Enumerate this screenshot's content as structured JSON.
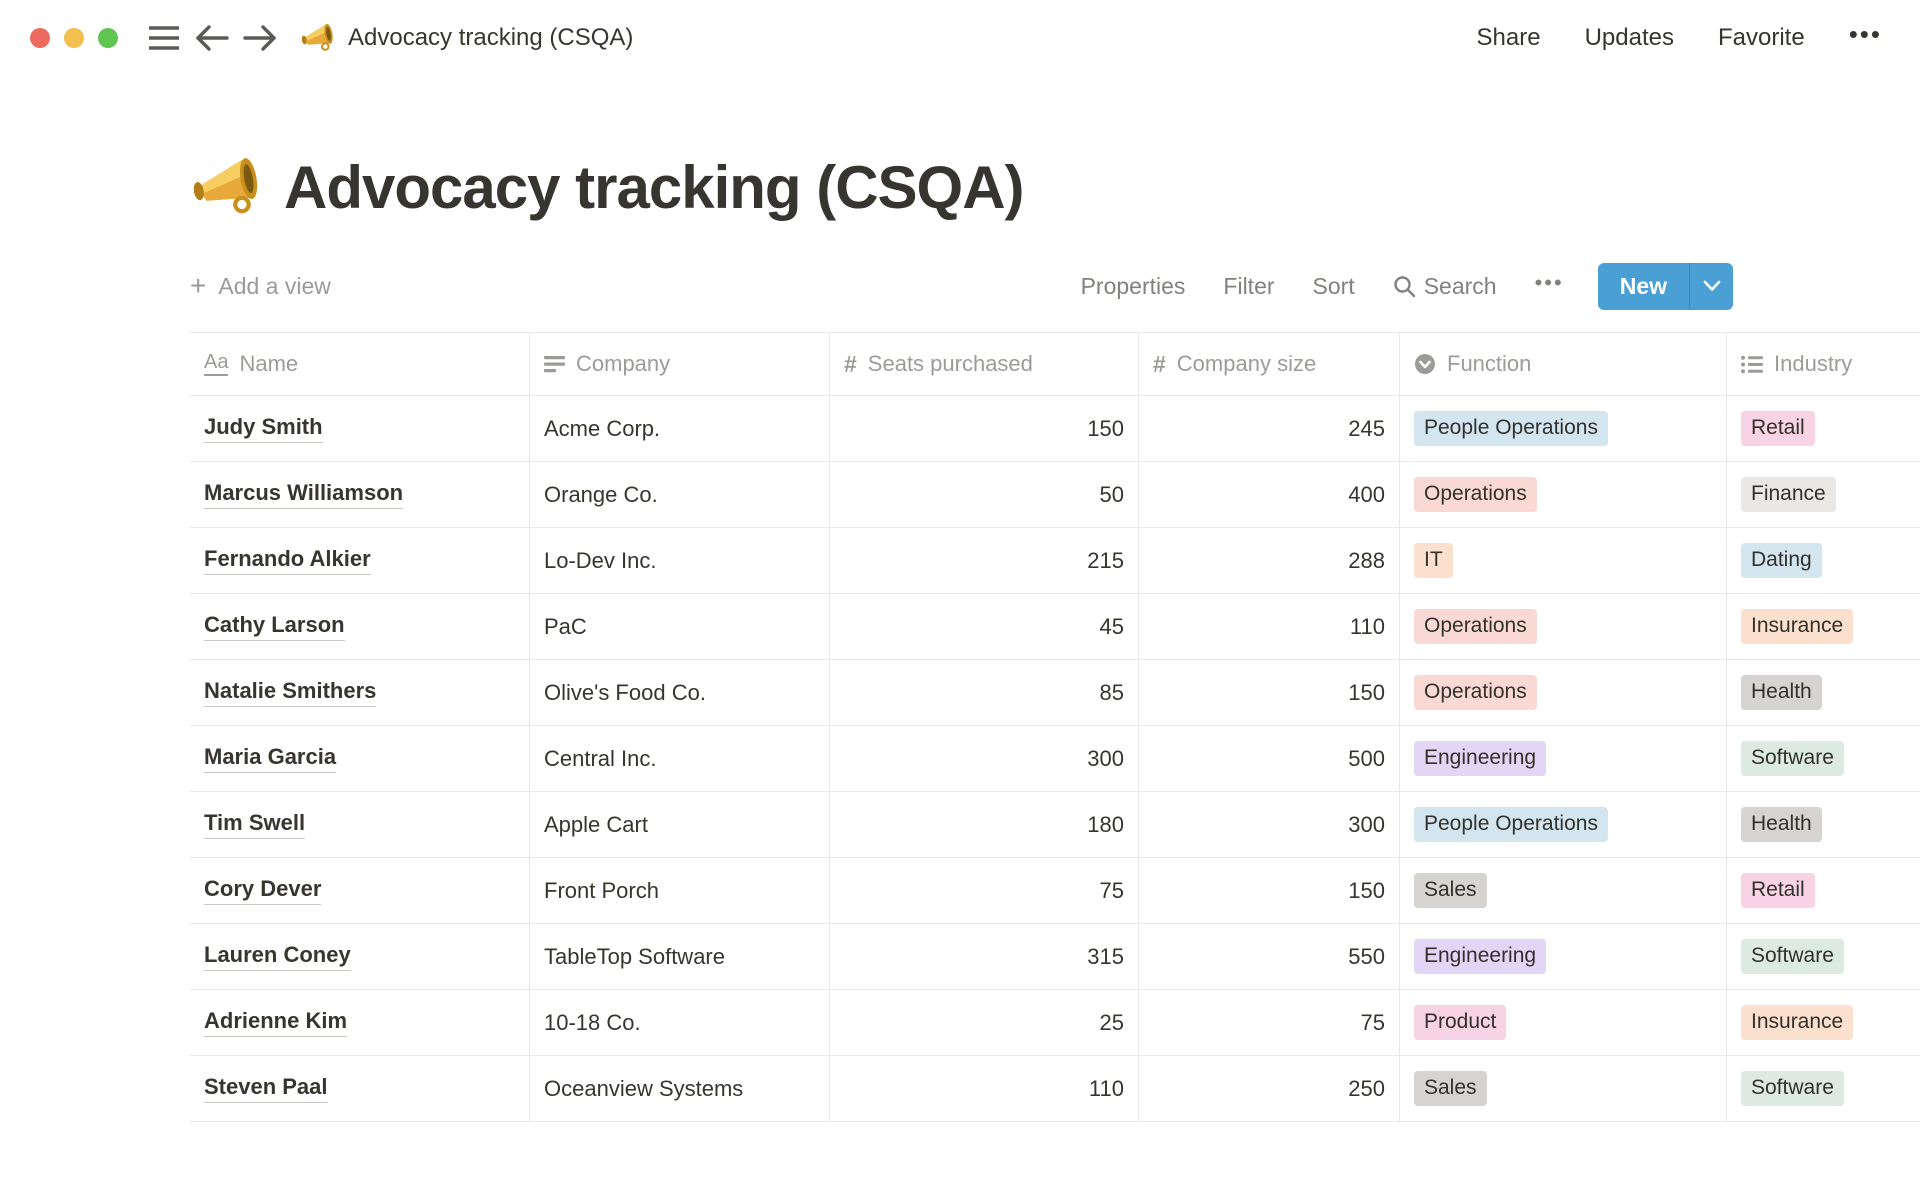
{
  "window": {
    "title": "Advocacy tracking (CSQA)",
    "actions": {
      "share": "Share",
      "updates": "Updates",
      "favorite": "Favorite",
      "more": "•••"
    }
  },
  "page": {
    "icon": "megaphone-emoji",
    "title": "Advocacy tracking (CSQA)"
  },
  "toolbar": {
    "add_view": "Add a view",
    "properties": "Properties",
    "filter": "Filter",
    "sort": "Sort",
    "search": "Search",
    "more": "•••",
    "new_label": "New"
  },
  "colors": {
    "accent_blue": "#4AA0D5",
    "traffic": {
      "close": "#EC6A5E",
      "minimize": "#F4BF4F",
      "maximize": "#61C554"
    },
    "grid_line": "#E9E9E7",
    "tags": {
      "blue": "#D3E5EF",
      "red": "#FAD8D4",
      "orange": "#FAE0CD",
      "purple": "#E1D6F5",
      "pink": "#F7D3E4",
      "green": "#DCEAE1",
      "gray": "#D6D4D1",
      "lightgray": "#E9E8E5"
    }
  },
  "table": {
    "columns": [
      {
        "label": "Name",
        "type": "title"
      },
      {
        "label": "Company",
        "type": "text"
      },
      {
        "label": "Seats purchased",
        "type": "number"
      },
      {
        "label": "Company size",
        "type": "number"
      },
      {
        "label": "Function",
        "type": "select"
      },
      {
        "label": "Industry",
        "type": "multi_select"
      }
    ],
    "rows": [
      {
        "name": "Judy Smith",
        "company": "Acme Corp.",
        "seats": "150",
        "size": "245",
        "function": {
          "label": "People Operations",
          "color": "blue"
        },
        "industry": {
          "label": "Retail",
          "color": "pink"
        }
      },
      {
        "name": "Marcus Williamson",
        "company": "Orange Co.",
        "seats": "50",
        "size": "400",
        "function": {
          "label": "Operations",
          "color": "red"
        },
        "industry": {
          "label": "Finance",
          "color": "lightgray"
        }
      },
      {
        "name": "Fernando Alkier",
        "company": "Lo-Dev Inc.",
        "seats": "215",
        "size": "288",
        "function": {
          "label": "IT",
          "color": "orange"
        },
        "industry": {
          "label": "Dating",
          "color": "blue"
        }
      },
      {
        "name": "Cathy Larson",
        "company": "PaC",
        "seats": "45",
        "size": "110",
        "function": {
          "label": "Operations",
          "color": "red"
        },
        "industry": {
          "label": "Insurance",
          "color": "orange"
        }
      },
      {
        "name": "Natalie Smithers",
        "company": "Olive's Food Co.",
        "seats": "85",
        "size": "150",
        "function": {
          "label": "Operations",
          "color": "red"
        },
        "industry": {
          "label": "Health",
          "color": "gray"
        }
      },
      {
        "name": "Maria Garcia",
        "company": "Central Inc.",
        "seats": "300",
        "size": "500",
        "function": {
          "label": "Engineering",
          "color": "purple"
        },
        "industry": {
          "label": "Software",
          "color": "green"
        }
      },
      {
        "name": "Tim Swell",
        "company": "Apple Cart",
        "seats": "180",
        "size": "300",
        "function": {
          "label": "People Operations",
          "color": "blue"
        },
        "industry": {
          "label": "Health",
          "color": "gray"
        }
      },
      {
        "name": "Cory Dever",
        "company": "Front Porch",
        "seats": "75",
        "size": "150",
        "function": {
          "label": "Sales",
          "color": "gray"
        },
        "industry": {
          "label": "Retail",
          "color": "pink"
        }
      },
      {
        "name": "Lauren Coney",
        "company": "TableTop Software",
        "seats": "315",
        "size": "550",
        "function": {
          "label": "Engineering",
          "color": "purple"
        },
        "industry": {
          "label": "Software",
          "color": "green"
        }
      },
      {
        "name": "Adrienne Kim",
        "company": "10-18 Co.",
        "seats": "25",
        "size": "75",
        "function": {
          "label": "Product",
          "color": "pink"
        },
        "industry": {
          "label": "Insurance",
          "color": "orange"
        }
      },
      {
        "name": "Steven Paal",
        "company": "Oceanview Systems",
        "seats": "110",
        "size": "250",
        "function": {
          "label": "Sales",
          "color": "gray"
        },
        "industry": {
          "label": "Software",
          "color": "green"
        }
      }
    ]
  }
}
